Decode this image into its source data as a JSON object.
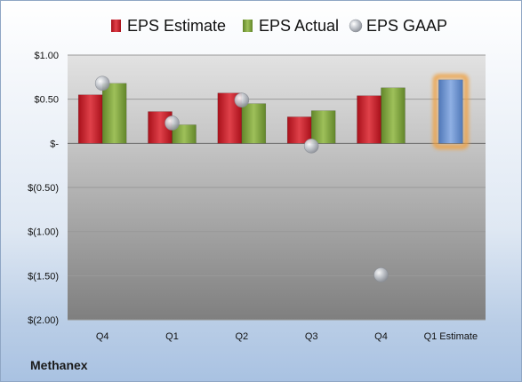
{
  "company": "Methanex",
  "chart_data": {
    "type": "bar",
    "categories": [
      "Q4",
      "Q1",
      "Q2",
      "Q3",
      "Q4",
      "Q1 Estimate"
    ],
    "series": [
      {
        "name": "EPS Estimate",
        "values": [
          0.55,
          0.36,
          0.57,
          0.3,
          0.54,
          null
        ],
        "color": "#c0202a"
      },
      {
        "name": "EPS Actual",
        "values": [
          0.68,
          0.21,
          0.45,
          0.37,
          0.63,
          null
        ],
        "color": "#7ea03c"
      },
      {
        "name": "EPS GAAP",
        "type": "scatter",
        "values": [
          0.68,
          0.23,
          0.49,
          -0.03,
          -1.49,
          null
        ],
        "color": "#b8bcc4"
      },
      {
        "name": "Q1 Estimate",
        "values": [
          null,
          null,
          null,
          null,
          null,
          0.72
        ],
        "color": "#6f95d0",
        "highlight": true
      }
    ],
    "ylim": [
      -2.0,
      1.0
    ],
    "yticks": [
      1.0,
      0.5,
      0.0,
      -0.5,
      -1.0,
      -1.5,
      -2.0
    ],
    "ytick_labels": [
      "$1.00",
      "$0.50",
      "$-",
      "$(0.50)",
      "$(1.00)",
      "$(1.50)",
      "$(2.00)"
    ],
    "grid": true,
    "legend": "top"
  }
}
